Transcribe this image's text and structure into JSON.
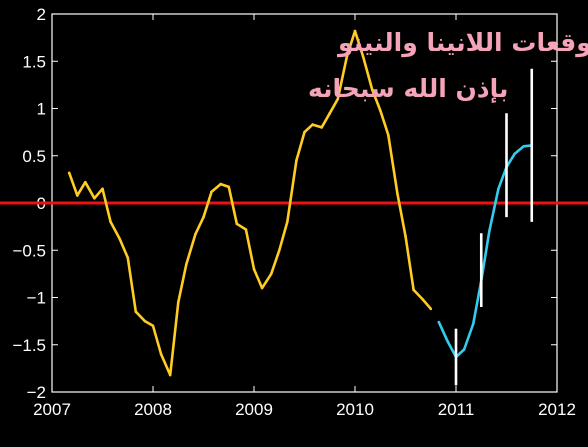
{
  "chart_data": {
    "type": "line",
    "title": "",
    "xlabel": "",
    "ylabel": "",
    "xlim": [
      2007,
      2012
    ],
    "ylim": [
      -2,
      2
    ],
    "xticks": [
      "2007",
      "2008",
      "2009",
      "2010",
      "2011",
      "2012"
    ],
    "yticks": [
      "2",
      "1.5",
      "1",
      "0.5",
      "0",
      "−0.5",
      "−1",
      "−1.5",
      "−2"
    ],
    "grid": false,
    "legend": "none",
    "annotations": [
      "توقعات اللانينا والنينو",
      "بإذن الله سبحانه"
    ],
    "colors": {
      "observed": "#ffcc22",
      "forecast": "#33ccee",
      "zero_line": "#ee1111",
      "error_bars": "#ffffff",
      "annotation": "#f4a3b8",
      "axes": "#ffffff",
      "background": "#000000"
    },
    "series": [
      {
        "x": [
          2007.17,
          2007.25,
          2007.33,
          2007.42,
          2007.5,
          2007.58,
          2007.67,
          2007.75,
          2007.83,
          2007.92,
          2008.0,
          2008.08,
          2008.17,
          2008.25,
          2008.33,
          2008.42,
          2008.5,
          2008.58,
          2008.67,
          2008.75,
          2008.83,
          2008.92,
          2009.0,
          2009.08,
          2009.17,
          2009.25,
          2009.33,
          2009.42,
          2009.5,
          2009.58,
          2009.67,
          2009.75,
          2009.83,
          2009.92,
          2010.0,
          2010.08,
          2010.17,
          2010.25,
          2010.33,
          2010.42,
          2010.5,
          2010.58,
          2010.67,
          2010.75
        ],
        "values": [
          0.32,
          0.08,
          0.22,
          0.05,
          0.15,
          -0.2,
          -0.38,
          -0.58,
          -1.15,
          -1.25,
          -1.3,
          -1.6,
          -1.82,
          -1.05,
          -0.65,
          -0.33,
          -0.15,
          0.12,
          0.2,
          0.17,
          -0.22,
          -0.28,
          -0.7,
          -0.9,
          -0.75,
          -0.5,
          -0.2,
          0.45,
          0.75,
          0.83,
          0.8,
          0.95,
          1.1,
          1.55,
          1.82,
          1.55,
          1.2,
          0.98,
          0.72,
          0.1,
          -0.35,
          -0.92,
          -1.02,
          -1.12
        ]
      },
      {
        "x": [
          2010.83,
          2010.92,
          2011.0,
          2011.08,
          2011.17,
          2011.25,
          2011.33,
          2011.42,
          2011.5,
          2011.58,
          2011.67,
          2011.75
        ],
        "values": [
          -1.26,
          -1.47,
          -1.63,
          -1.55,
          -1.28,
          -0.82,
          -0.3,
          0.15,
          0.38,
          0.52,
          0.6,
          0.61
        ]
      }
    ],
    "error_bars": [
      {
        "x": 2011.0,
        "low": -1.93,
        "high": -1.33
      },
      {
        "x": 2011.25,
        "low": -1.1,
        "high": -0.32
      },
      {
        "x": 2011.5,
        "low": -0.15,
        "high": 0.95
      },
      {
        "x": 2011.75,
        "low": -0.2,
        "high": 1.42
      }
    ],
    "reference_line": {
      "y": 0
    }
  }
}
